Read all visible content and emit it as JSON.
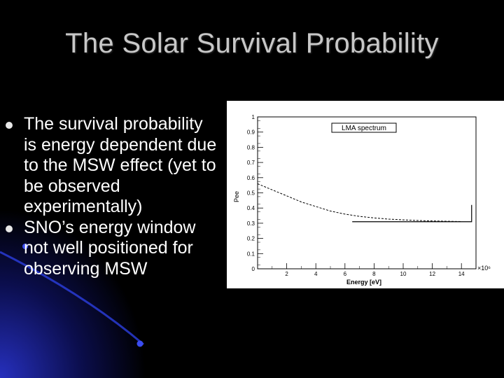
{
  "slide": {
    "title": "The Solar Survival Probability",
    "bullets": [
      "The survival probability is energy dependent due to the MSW effect (yet to be observed experimentally)",
      "SNO’s energy window not well positioned for observing MSW"
    ]
  },
  "colors": {
    "background": "#000000",
    "glow": "#2832c8",
    "title": "#c8c8c8",
    "text": "#ffffff"
  },
  "chart_data": {
    "type": "line",
    "legend": "LMA spectrum",
    "ylabel": "Pee",
    "xlabel": "Energy [eV]",
    "x_multiplier": "×10⁶",
    "xlim": [
      0,
      15
    ],
    "ylim": [
      0,
      1
    ],
    "x_ticks": [
      2,
      4,
      6,
      8,
      10,
      12,
      14
    ],
    "y_ticks": [
      0,
      0.1,
      0.2,
      0.3,
      0.4,
      0.5,
      0.6,
      0.7,
      0.8,
      0.9,
      1
    ],
    "series": [
      {
        "x": [
          0,
          1,
          2,
          3,
          4,
          5,
          6,
          7,
          8,
          9,
          10,
          11,
          12,
          13,
          14
        ],
        "values": [
          0.56,
          0.52,
          0.48,
          0.44,
          0.41,
          0.38,
          0.36,
          0.345,
          0.335,
          0.327,
          0.322,
          0.318,
          0.315,
          0.313,
          0.311
        ]
      }
    ],
    "sno_window": {
      "x_start": 6.5,
      "x_end": 14.7,
      "level": 0.31
    }
  }
}
